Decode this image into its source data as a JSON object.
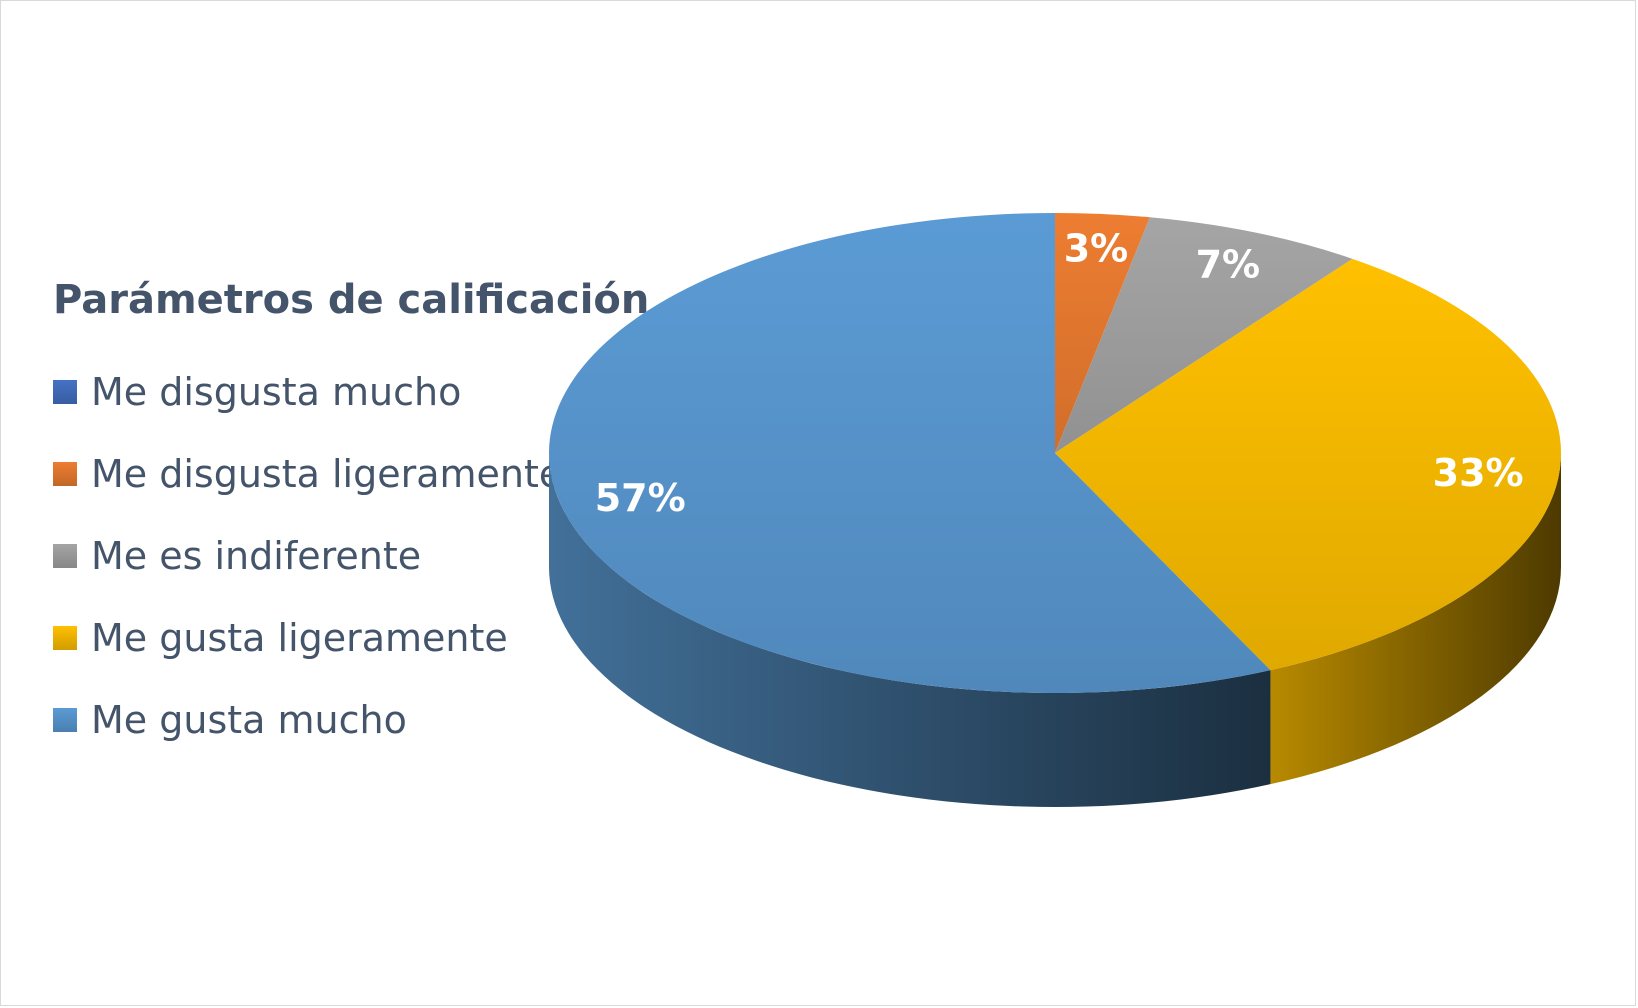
{
  "chart_data": {
    "type": "pie",
    "legend_title": "Parámetros de calificación",
    "legend_position": "left",
    "three_d": true,
    "slices": [
      {
        "name": "Me disgusta mucho",
        "value": 0,
        "label": "",
        "color": "#4472c4"
      },
      {
        "name": "Me disgusta ligeramente",
        "value": 3,
        "label": "3%",
        "color": "#ed7d31"
      },
      {
        "name": "Me es indiferente",
        "value": 7,
        "label": "7%",
        "color": "#a5a5a5"
      },
      {
        "name": "Me gusta ligeramente",
        "value": 33,
        "label": "33%",
        "color": "#ffc000"
      },
      {
        "name": "Me gusta mucho",
        "value": 57,
        "label": "57%",
        "color": "#5b9bd5"
      }
    ]
  }
}
